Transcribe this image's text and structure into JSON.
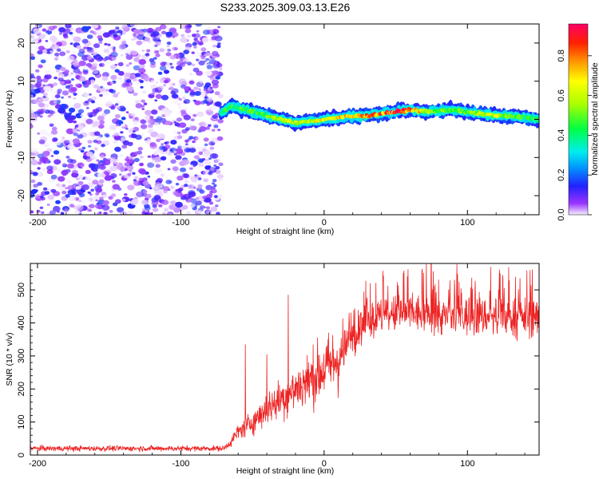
{
  "title": "S233.2025.309.03.13.E26",
  "chart_data": [
    {
      "type": "heatmap",
      "name": "spectrogram",
      "xlabel": "Height of straight line (km)",
      "ylabel": "Frequency (Hz)",
      "xlim": [
        -205,
        150
      ],
      "ylim": [
        -25,
        25
      ],
      "xticks": [
        -200,
        -100,
        0,
        100
      ],
      "yticks": [
        -20,
        -10,
        0,
        10,
        20
      ],
      "noise_region": [
        -205,
        -72
      ],
      "ridge": {
        "x": [
          -72,
          -65,
          -60,
          -50,
          -40,
          -30,
          -20,
          -10,
          0,
          10,
          20,
          30,
          40,
          50,
          60,
          70,
          80,
          90,
          100,
          110,
          120,
          130,
          140,
          150
        ],
        "freq": [
          1.5,
          3.5,
          3.0,
          2.0,
          1.0,
          0.0,
          -1.0,
          -0.5,
          0.0,
          0.5,
          0.8,
          1.0,
          1.5,
          2.0,
          2.5,
          2.0,
          2.2,
          2.5,
          1.8,
          1.5,
          1.0,
          0.8,
          0.5,
          0.0
        ],
        "amplitude": [
          0.4,
          0.45,
          0.45,
          0.45,
          0.5,
          0.55,
          0.6,
          0.6,
          0.65,
          0.7,
          0.7,
          0.75,
          0.8,
          0.85,
          0.8,
          0.6,
          0.5,
          0.5,
          0.5,
          0.55,
          0.6,
          0.5,
          0.45,
          0.45
        ]
      },
      "colorbar": {
        "label": "Normalized spectral amplitude",
        "range": [
          0.0,
          0.9
        ],
        "ticks": [
          "0.0",
          "0.2",
          "0.4",
          "0.6",
          "0.8"
        ]
      }
    },
    {
      "type": "line",
      "name": "snr",
      "xlabel": "Height of straight line (km)",
      "ylabel": "SNR (10 * v/v)",
      "xlim": [
        -205,
        150
      ],
      "ylim": [
        0,
        580
      ],
      "xticks": [
        -200,
        -100,
        0,
        100
      ],
      "yticks": [
        0,
        100,
        200,
        300,
        400,
        500
      ],
      "series": [
        {
          "name": "SNR",
          "color": "#ee2222",
          "x": [
            -205,
            -100,
            -70,
            -65,
            -60,
            -50,
            -40,
            -30,
            -20,
            -10,
            0,
            10,
            20,
            30,
            40,
            60,
            80,
            100,
            120,
            150
          ],
          "y": [
            20,
            20,
            20,
            40,
            70,
            100,
            140,
            170,
            200,
            230,
            260,
            290,
            360,
            400,
            420,
            430,
            420,
            420,
            420,
            415
          ],
          "spikes": [
            {
              "x": -55,
              "y": 335
            },
            {
              "x": -40,
              "y": 305
            },
            {
              "x": -25,
              "y": 485
            }
          ]
        }
      ]
    }
  ]
}
